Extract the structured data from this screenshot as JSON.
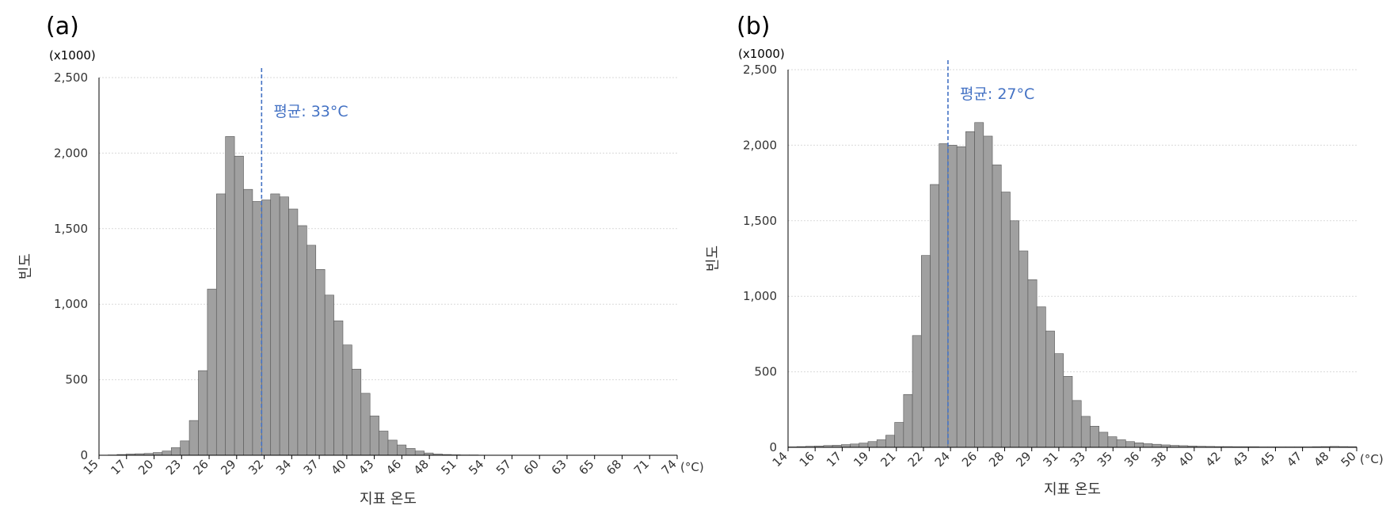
{
  "chart_data": [
    {
      "type": "bar",
      "panel_label": "(a)",
      "unit_label": "(x1000)",
      "xlabel": "지표 온도",
      "ylabel": "빈도",
      "x_unit": "(°C)",
      "ylim": [
        0,
        2500
      ],
      "y_ticks": [
        "0",
        "500",
        "1,000",
        "1,500",
        "2,000",
        "2,500"
      ],
      "y_tick_values": [
        0,
        500,
        1000,
        1500,
        2000,
        2500
      ],
      "x_tick_labels": [
        "15",
        "17",
        "20",
        "23",
        "26",
        "29",
        "32",
        "34",
        "37",
        "40",
        "43",
        "46",
        "48",
        "51",
        "54",
        "57",
        "60",
        "63",
        "65",
        "68",
        "71",
        "74"
      ],
      "grid": true,
      "mean_label": "평균: 33°C",
      "mean_bin": 18,
      "values": [
        0,
        2,
        5,
        8,
        10,
        12,
        18,
        28,
        50,
        95,
        230,
        560,
        1100,
        1730,
        2110,
        1980,
        1760,
        1680,
        1690,
        1730,
        1710,
        1630,
        1520,
        1390,
        1230,
        1060,
        890,
        730,
        570,
        410,
        260,
        160,
        100,
        68,
        45,
        28,
        15,
        8,
        5,
        3,
        2,
        2,
        1,
        1,
        1,
        1,
        1,
        1,
        1,
        1,
        1,
        1,
        1,
        1,
        1,
        1,
        1,
        1,
        1,
        1,
        1,
        1,
        1,
        1
      ],
      "bar_color": "#a0a0a0",
      "mean_color": "#4472c4"
    },
    {
      "type": "bar",
      "panel_label": "(b)",
      "unit_label": "(x1000)",
      "xlabel": "지표 온도",
      "ylabel": "빈도",
      "x_unit": "(°C)",
      "ylim": [
        0,
        2500
      ],
      "y_ticks": [
        "0",
        "500",
        "1,000",
        "1,500",
        "2,000",
        "2,500"
      ],
      "y_tick_values": [
        0,
        500,
        1000,
        1500,
        2000,
        2500
      ],
      "x_tick_labels": [
        "14",
        "16",
        "17",
        "19",
        "21",
        "22",
        "24",
        "26",
        "28",
        "29",
        "31",
        "33",
        "35",
        "36",
        "38",
        "40",
        "42",
        "43",
        "45",
        "47",
        "48",
        "50"
      ],
      "grid": true,
      "mean_label": "평균: 27°C",
      "mean_bin": 18,
      "values": [
        3,
        5,
        7,
        9,
        12,
        14,
        18,
        22,
        28,
        38,
        50,
        80,
        165,
        350,
        740,
        1270,
        1740,
        2010,
        2000,
        1990,
        2090,
        2150,
        2060,
        1870,
        1690,
        1500,
        1300,
        1110,
        930,
        770,
        620,
        470,
        310,
        205,
        140,
        100,
        70,
        50,
        38,
        30,
        24,
        20,
        16,
        13,
        11,
        9,
        7,
        6,
        5,
        5,
        4,
        4,
        4,
        3,
        3,
        3,
        3,
        3,
        3,
        4,
        5,
        6,
        5,
        4
      ],
      "bar_color": "#a0a0a0",
      "mean_color": "#4472c4"
    }
  ]
}
